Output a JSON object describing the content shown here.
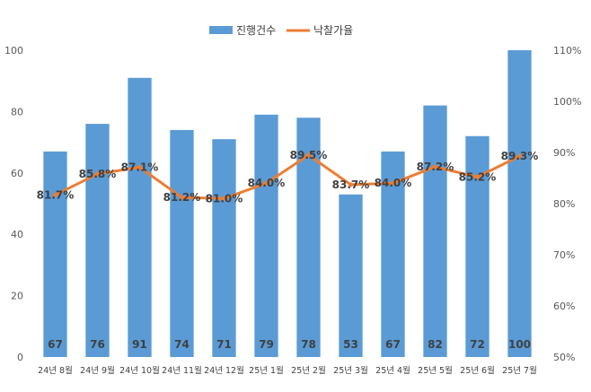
{
  "chart_data": {
    "type": "bar",
    "categories": [
      "24년 8월",
      "24년 9월",
      "24년 10월",
      "24년 11월",
      "24년 12월",
      "25년 1월",
      "25년 2월",
      "25년 3월",
      "25년 4월",
      "25년 5월",
      "25년 6월",
      "25년 7월"
    ],
    "series": [
      {
        "name": "진행건수",
        "type": "bar",
        "axis": "left",
        "color": "#5b9bd5",
        "values": [
          67,
          76,
          91,
          74,
          71,
          79,
          78,
          53,
          67,
          82,
          72,
          100
        ],
        "labels": [
          "67",
          "76",
          "91",
          "74",
          "71",
          "79",
          "78",
          "53",
          "67",
          "82",
          "72",
          "100"
        ]
      },
      {
        "name": "낙찰가율",
        "type": "line",
        "axis": "right",
        "color": "#ed7d31",
        "values": [
          81.7,
          85.8,
          87.1,
          81.2,
          81.0,
          84.0,
          89.5,
          83.7,
          84.0,
          87.2,
          85.2,
          89.3
        ],
        "labels": [
          "81.7%",
          "85.8%",
          "87.1%",
          "81.2%",
          "81.0%",
          "84.0%",
          "89.5%",
          "83.7%",
          "84.0%",
          "87.2%",
          "85.2%",
          "89.3%"
        ]
      }
    ],
    "y_left": {
      "min": 0,
      "max": 100,
      "ticks": [
        "0",
        "20",
        "40",
        "60",
        "80",
        "100"
      ]
    },
    "y_right": {
      "min": 50,
      "max": 110,
      "ticks": [
        "50%",
        "60%",
        "70%",
        "80%",
        "90%",
        "100%",
        "110%"
      ]
    },
    "legend_position": "top-center",
    "grid": false
  }
}
